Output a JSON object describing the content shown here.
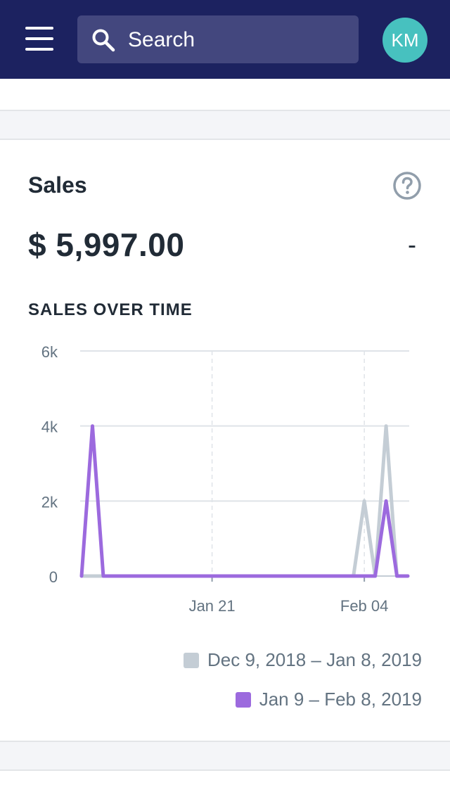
{
  "header": {
    "search_placeholder": "Search",
    "avatar_initials": "KM"
  },
  "card": {
    "title": "Sales",
    "amount": "$ 5,997.00",
    "change": "-",
    "subtitle": "SALES OVER TIME"
  },
  "colors": {
    "header_bg": "#1c2260",
    "search_bg": "#43477e",
    "avatar_bg": "#47c1bf",
    "current_series": "#9c6ade",
    "previous_series": "#c4cdd5"
  },
  "chart_data": {
    "type": "line",
    "y_ticks": [
      "6k",
      "4k",
      "2k",
      "0"
    ],
    "x_ticks": [
      "Jan 21",
      "Feb 04"
    ],
    "ylim": [
      0,
      6000
    ],
    "x_days": 31,
    "x_tick_positions": [
      12,
      26
    ],
    "legend": [
      "Dec 9, 2018 – Jan 8, 2019",
      "Jan 9 – Feb 8, 2019"
    ],
    "series": [
      {
        "name": "Dec 9, 2018 – Jan 8, 2019",
        "color": "#c4cdd5",
        "values": [
          0,
          0,
          0,
          0,
          0,
          0,
          0,
          0,
          0,
          0,
          0,
          0,
          0,
          0,
          0,
          0,
          0,
          0,
          0,
          0,
          0,
          0,
          0,
          0,
          0,
          0,
          2000,
          0,
          4000,
          0,
          0
        ]
      },
      {
        "name": "Jan 9 – Feb 8, 2019",
        "color": "#9c6ade",
        "values": [
          0,
          4000,
          0,
          0,
          0,
          0,
          0,
          0,
          0,
          0,
          0,
          0,
          0,
          0,
          0,
          0,
          0,
          0,
          0,
          0,
          0,
          0,
          0,
          0,
          0,
          0,
          0,
          0,
          2000,
          0,
          0
        ]
      }
    ]
  }
}
